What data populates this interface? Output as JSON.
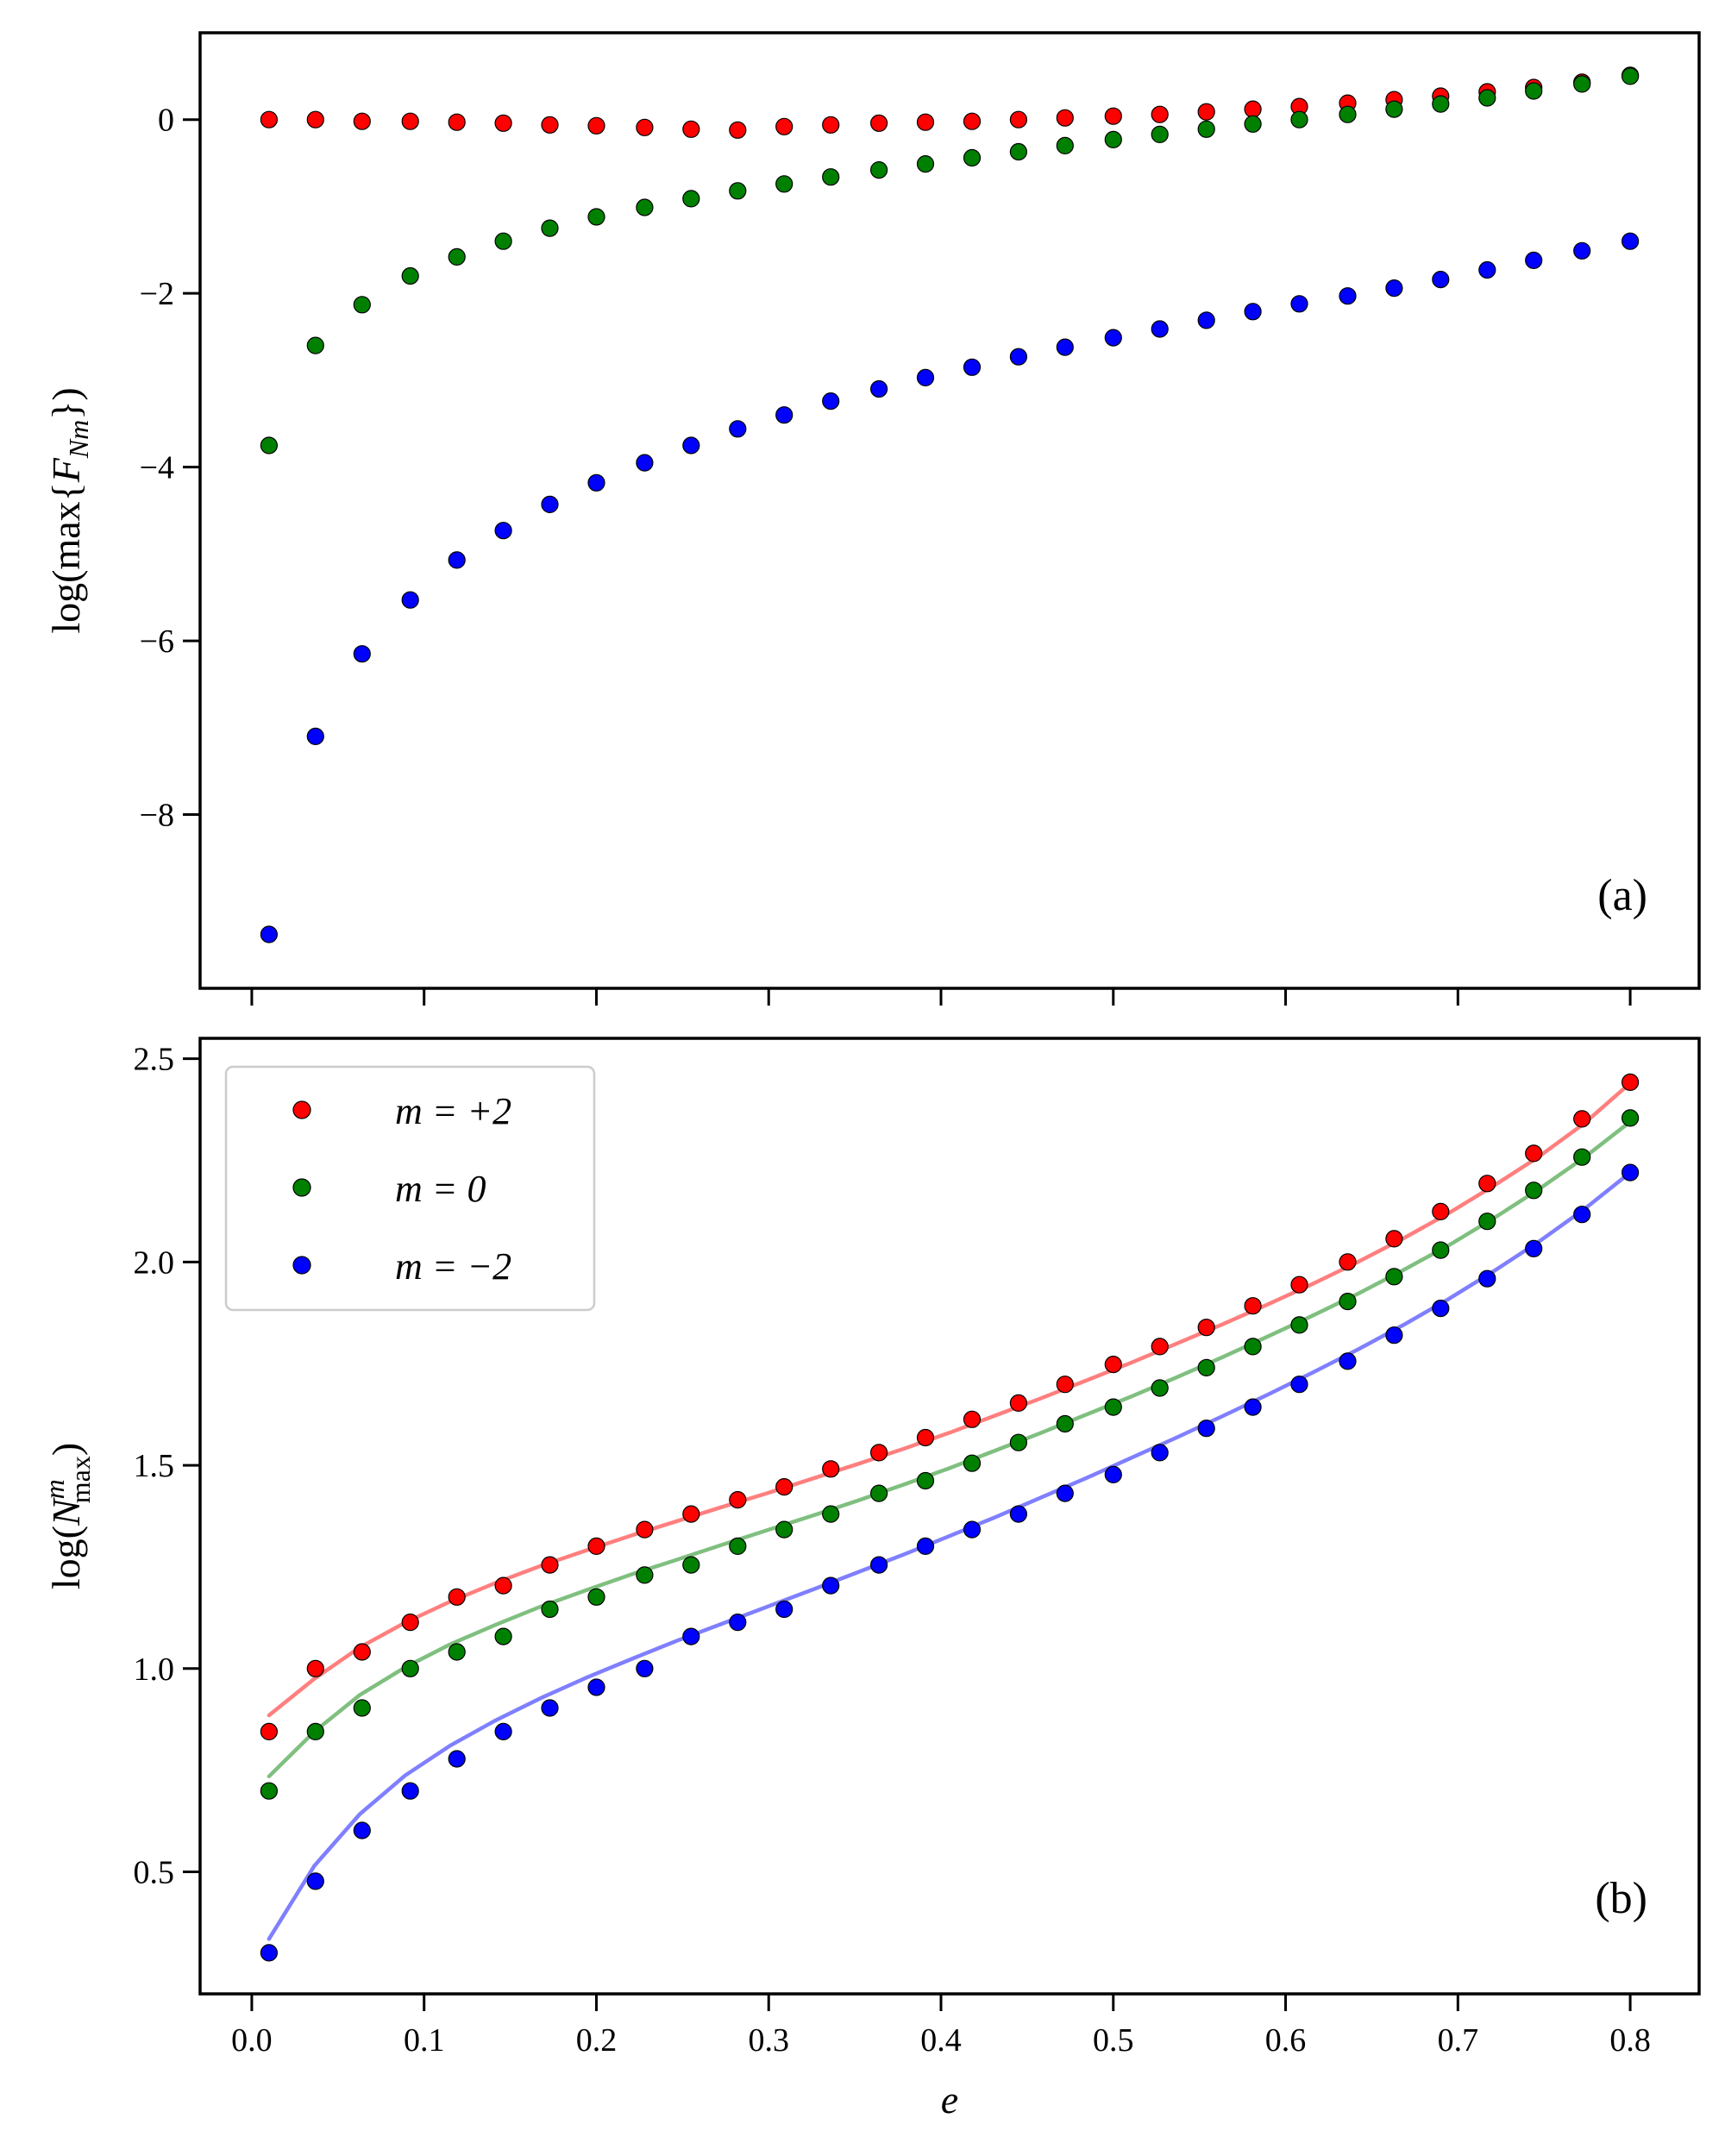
{
  "chart_data": [
    {
      "type": "scatter",
      "panel_label": "(a)",
      "ylabel": "log(max{F_Nm})",
      "ylim": [
        -10.0,
        1.0
      ],
      "xlim": [
        -0.03,
        0.84
      ],
      "show_x_tick_labels": false,
      "x_ticks": [
        0.0,
        0.1,
        0.2,
        0.3,
        0.4,
        0.5,
        0.6,
        0.7,
        0.8
      ],
      "y_ticks": [
        0,
        -2,
        -4,
        -6,
        -8
      ],
      "y_tick_labels": [
        "0",
        "−2",
        "−4",
        "−6",
        "−8"
      ],
      "x": [
        0.01,
        0.037,
        0.064,
        0.092,
        0.119,
        0.146,
        0.173,
        0.2,
        0.228,
        0.255,
        0.282,
        0.309,
        0.336,
        0.364,
        0.391,
        0.418,
        0.445,
        0.472,
        0.5,
        0.527,
        0.554,
        0.581,
        0.608,
        0.636,
        0.663,
        0.69,
        0.717,
        0.744,
        0.772,
        0.8
      ],
      "series": [
        {
          "color": "#ff0000",
          "values": [
            0.0,
            0.0,
            -0.02,
            -0.02,
            -0.03,
            -0.04,
            -0.06,
            -0.07,
            -0.09,
            -0.11,
            -0.12,
            -0.08,
            -0.06,
            -0.04,
            -0.03,
            -0.02,
            0.0,
            0.02,
            0.04,
            0.06,
            0.09,
            0.12,
            0.15,
            0.19,
            0.23,
            0.27,
            0.32,
            0.37,
            0.43,
            0.51
          ]
        },
        {
          "color": "#008000",
          "values": [
            -3.75,
            -2.6,
            -2.13,
            -1.8,
            -1.58,
            -1.4,
            -1.25,
            -1.12,
            -1.01,
            -0.91,
            -0.82,
            -0.74,
            -0.66,
            -0.58,
            -0.51,
            -0.44,
            -0.37,
            -0.3,
            -0.23,
            -0.17,
            -0.11,
            -0.05,
            0.0,
            0.06,
            0.12,
            0.18,
            0.25,
            0.33,
            0.41,
            0.5
          ]
        },
        {
          "color": "#0000ff",
          "values": [
            -9.38,
            -7.1,
            -6.15,
            -5.53,
            -5.07,
            -4.73,
            -4.43,
            -4.18,
            -3.95,
            -3.75,
            -3.56,
            -3.4,
            -3.24,
            -3.1,
            -2.97,
            -2.85,
            -2.73,
            -2.62,
            -2.51,
            -2.41,
            -2.31,
            -2.21,
            -2.12,
            -2.03,
            -1.94,
            -1.84,
            -1.73,
            -1.62,
            -1.51,
            -1.4
          ]
        }
      ]
    },
    {
      "type": "scatter",
      "panel_label": "(b)",
      "xlabel": "e",
      "ylabel": "log(N^m_max)",
      "ylim": [
        0.2,
        2.55
      ],
      "xlim": [
        -0.03,
        0.84
      ],
      "show_x_tick_labels": true,
      "x_ticks": [
        0.0,
        0.1,
        0.2,
        0.3,
        0.4,
        0.5,
        0.6,
        0.7,
        0.8
      ],
      "x_tick_labels": [
        "0.0",
        "0.1",
        "0.2",
        "0.3",
        "0.4",
        "0.5",
        "0.6",
        "0.7",
        "0.8"
      ],
      "y_ticks": [
        0.5,
        1.0,
        1.5,
        2.0,
        2.5
      ],
      "y_tick_labels": [
        "0.5",
        "1.0",
        "1.5",
        "2.0",
        "2.5"
      ],
      "legend": {
        "position": "upper-left",
        "entries": [
          "m = +2",
          "m = 0",
          "m = −2"
        ]
      },
      "x": [
        0.01,
        0.037,
        0.064,
        0.092,
        0.119,
        0.146,
        0.173,
        0.2,
        0.228,
        0.255,
        0.282,
        0.309,
        0.336,
        0.364,
        0.391,
        0.418,
        0.445,
        0.472,
        0.5,
        0.527,
        0.554,
        0.581,
        0.608,
        0.636,
        0.663,
        0.69,
        0.717,
        0.744,
        0.772,
        0.8
      ],
      "series": [
        {
          "name": "m = +2",
          "color": "#ff0000",
          "values": [
            0.845,
            1.0,
            1.041,
            1.114,
            1.176,
            1.204,
            1.255,
            1.301,
            1.342,
            1.38,
            1.415,
            1.447,
            1.491,
            1.531,
            1.568,
            1.613,
            1.653,
            1.699,
            1.748,
            1.792,
            1.839,
            1.892,
            1.944,
            2.0,
            2.057,
            2.124,
            2.193,
            2.267,
            2.352,
            2.442
          ]
        },
        {
          "name": "m = 0",
          "color": "#008000",
          "values": [
            0.699,
            0.845,
            0.903,
            1.0,
            1.041,
            1.079,
            1.146,
            1.176,
            1.23,
            1.255,
            1.301,
            1.342,
            1.38,
            1.431,
            1.462,
            1.505,
            1.556,
            1.602,
            1.643,
            1.69,
            1.74,
            1.792,
            1.845,
            1.903,
            1.964,
            2.029,
            2.1,
            2.176,
            2.258,
            2.354
          ]
        },
        {
          "name": "m = −2",
          "color": "#0000ff",
          "values": [
            0.301,
            0.477,
            0.602,
            0.699,
            0.778,
            0.845,
            0.903,
            0.954,
            1.0,
            1.079,
            1.114,
            1.146,
            1.204,
            1.255,
            1.301,
            1.342,
            1.38,
            1.431,
            1.477,
            1.531,
            1.591,
            1.643,
            1.699,
            1.756,
            1.82,
            1.886,
            1.959,
            2.033,
            2.117,
            2.22
          ]
        }
      ],
      "fits": [
        {
          "color": "#ff0000",
          "opacity": 0.5,
          "values": [
            0.885,
            0.975,
            1.052,
            1.113,
            1.165,
            1.211,
            1.253,
            1.291,
            1.328,
            1.363,
            1.398,
            1.432,
            1.468,
            1.504,
            1.541,
            1.58,
            1.622,
            1.664,
            1.708,
            1.752,
            1.799,
            1.846,
            1.895,
            1.946,
            2.0,
            2.058,
            2.12,
            2.188,
            2.26,
            2.342,
            2.44
          ]
        },
        {
          "color": "#008000",
          "opacity": 0.5,
          "values": [
            0.735,
            0.845,
            0.935,
            1.003,
            1.06,
            1.108,
            1.153,
            1.193,
            1.232,
            1.268,
            1.305,
            1.341,
            1.377,
            1.414,
            1.453,
            1.493,
            1.536,
            1.579,
            1.624,
            1.669,
            1.716,
            1.765,
            1.816,
            1.868,
            1.922,
            1.98,
            2.041,
            2.108,
            2.18,
            2.258,
            2.345
          ]
        },
        {
          "color": "#0000ff",
          "opacity": 0.5,
          "values": [
            0.335,
            0.515,
            0.642,
            0.737,
            0.811,
            0.873,
            0.928,
            0.978,
            1.024,
            1.069,
            1.111,
            1.153,
            1.195,
            1.238,
            1.281,
            1.326,
            1.372,
            1.42,
            1.468,
            1.518,
            1.568,
            1.62,
            1.673,
            1.728,
            1.785,
            1.845,
            1.909,
            1.978,
            2.051,
            2.131,
            2.22
          ]
        }
      ]
    }
  ]
}
